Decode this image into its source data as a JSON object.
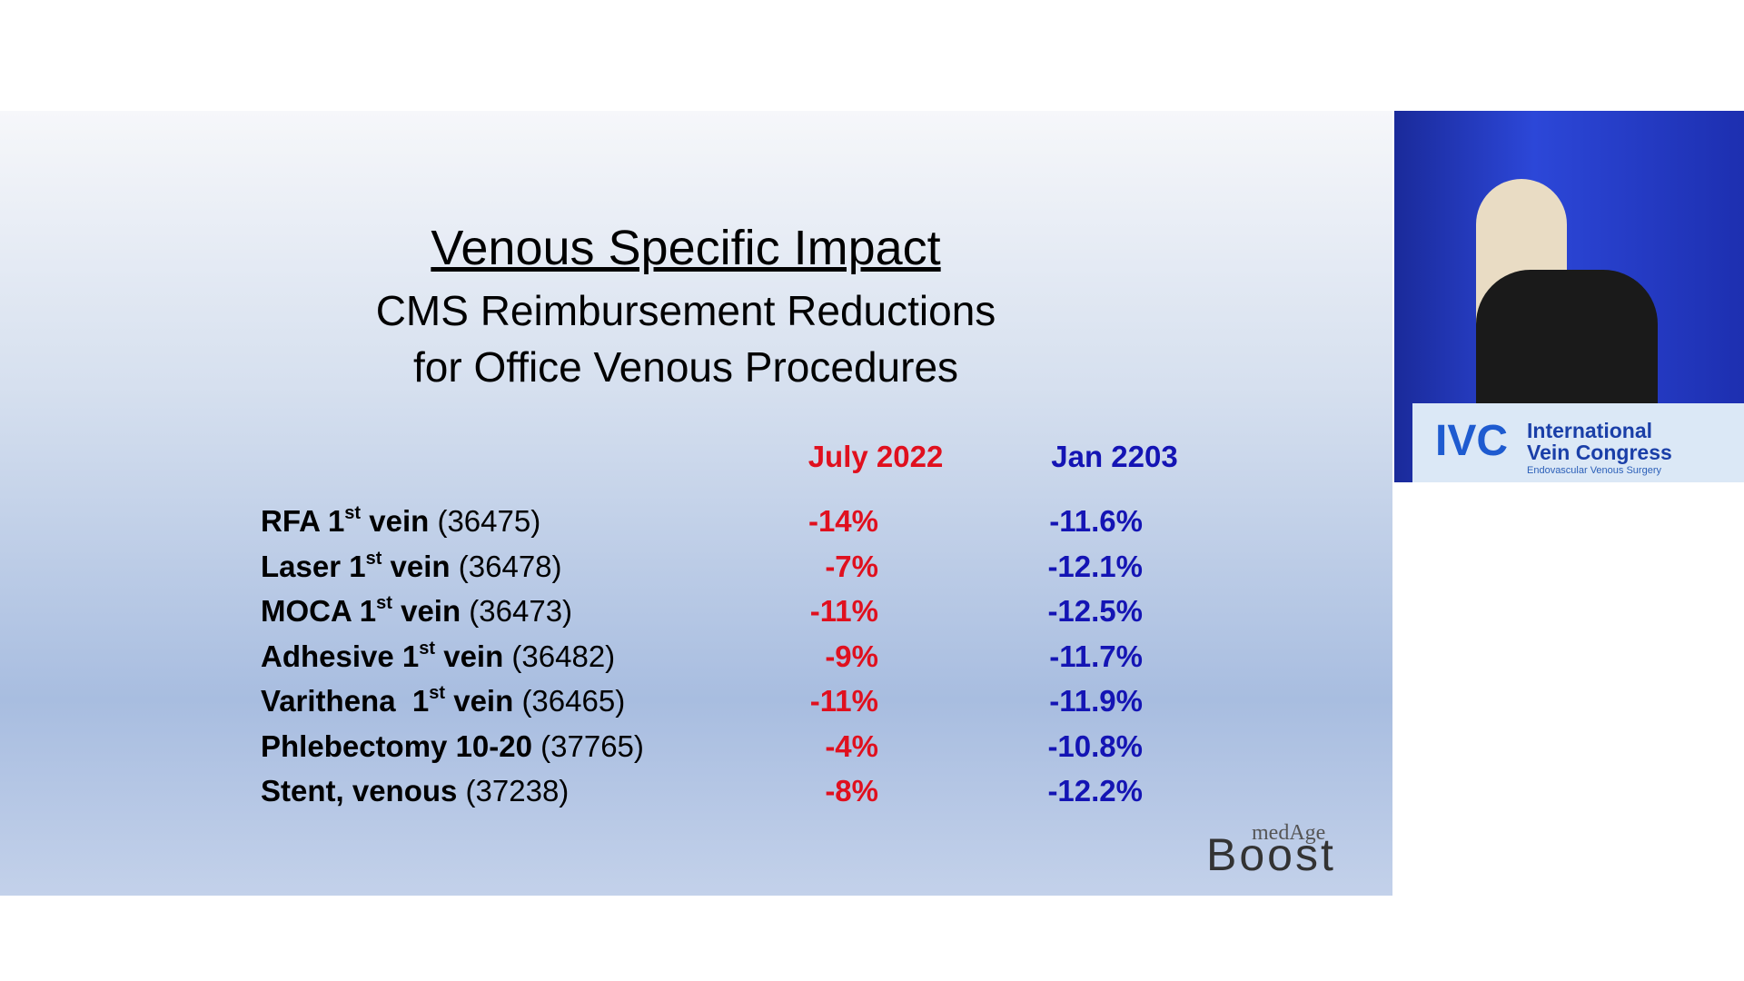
{
  "slide": {
    "title": "Venous Specific Impact",
    "subtitle_lines": [
      "CMS Reimbursement Reductions",
      "for Office Venous Procedures"
    ],
    "columns": [
      "July 2022",
      "Jan 2203"
    ],
    "rows": [
      {
        "name": "RFA 1",
        "sup": "st",
        "name_rest": " vein",
        "code": "(36475)",
        "values": [
          "-14%",
          "-11.6%"
        ]
      },
      {
        "name": "Laser 1",
        "sup": "st",
        "name_rest": " vein",
        "code": "(36478)",
        "values": [
          "-7%",
          "-12.1%"
        ]
      },
      {
        "name": "MOCA 1",
        "sup": "st",
        "name_rest": " vein",
        "code": "(36473)",
        "values": [
          "-11%",
          "-12.5%"
        ]
      },
      {
        "name": "Adhesive 1",
        "sup": "st",
        "name_rest": " vein",
        "code": "(36482)",
        "values": [
          "-9%",
          "-11.7%"
        ]
      },
      {
        "name": "Varithena  1",
        "sup": "st",
        "name_rest": " vein",
        "code": "(36465)",
        "values": [
          "-11%",
          "-11.9%"
        ]
      },
      {
        "name": "Phlebectomy 10-20",
        "code": "(37765)",
        "values": [
          "-4%",
          "-10.8%"
        ]
      },
      {
        "name": "Stent, venous",
        "code": "(37238)",
        "values": [
          "-8%",
          "-12.2%"
        ]
      }
    ],
    "logo": {
      "small": "medAge",
      "big": "Boost"
    }
  },
  "video": {
    "logo_mark": "IVC",
    "lines": [
      "International",
      "Vein Congress"
    ],
    "tagline": "Endovascular Venous Surgery"
  }
}
